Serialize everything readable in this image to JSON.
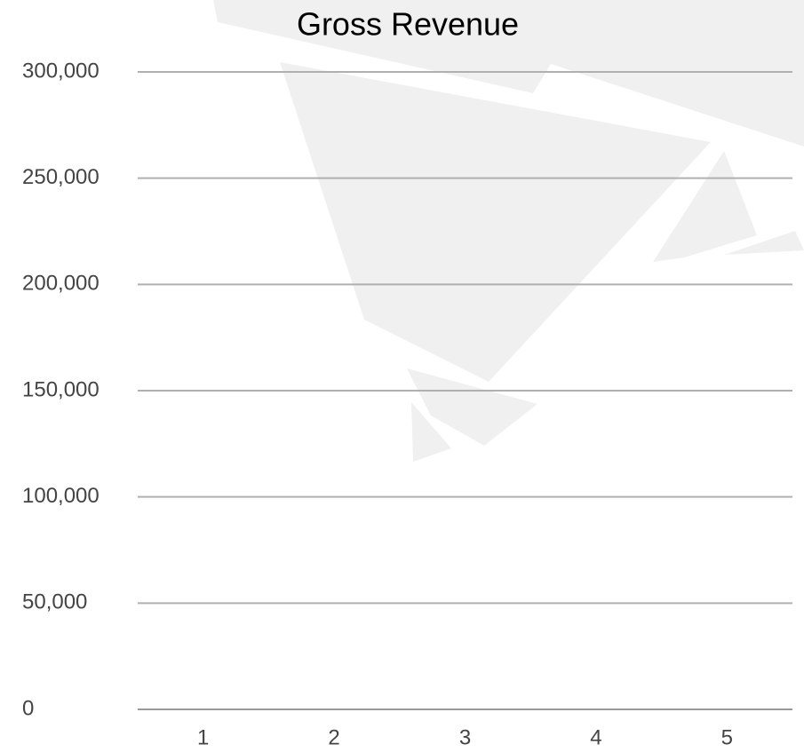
{
  "chart_data": {
    "type": "bar",
    "title": "Gross Revenue",
    "categories": [
      "1",
      "2",
      "3",
      "4",
      "5"
    ],
    "ylim": [
      0,
      300000
    ],
    "yticks": [
      0,
      {
        "value": 50000,
        "label": "50,000"
      },
      {
        "value": 100000,
        "label": "100,000"
      },
      {
        "value": 150000,
        "label": "150,000"
      },
      {
        "value": 200000,
        "label": "200,000"
      },
      {
        "value": 250000,
        "label": "250,000"
      },
      {
        "value": 300000,
        "label": "300,000"
      }
    ],
    "grid": true
  }
}
